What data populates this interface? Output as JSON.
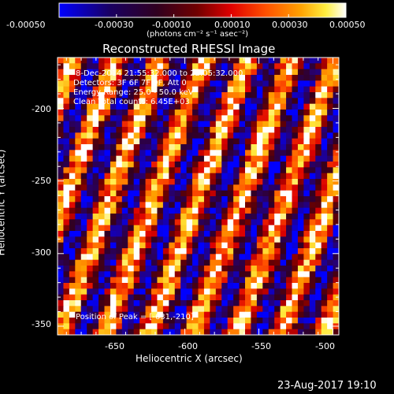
{
  "colorbar": {
    "ticks": [
      "-0.00050",
      "-0.00030",
      "-0.00010",
      "0.00010",
      "0.00030",
      "0.00050"
    ],
    "unit_label": "(photons cm⁻² s⁻¹ asec⁻²)",
    "colormap": [
      "#0000ff",
      "#000000",
      "#8b0000",
      "#ff0000",
      "#ff8c00",
      "#ffff00",
      "#ffffff"
    ]
  },
  "image": {
    "title": "Reconstructed RHESSI Image",
    "info_lines": [
      "8-Dec-2014 21:55:32.000 to 22:05:32.000",
      "Detectors: 3F 6F 7F 9F, Att 0",
      "Energy Range: 25.0 - 50.0 keV",
      "Clean    Total counts: 6.45E+03"
    ],
    "peak_position": "Position of Peak = [-631,-210]",
    "xlabel": "Heliocentric X (arcsec)",
    "ylabel": "Heliocentric Y (arcsec)",
    "x_ticks": [
      "-650",
      "-600",
      "-550",
      "-500"
    ],
    "y_ticks": [
      "-200",
      "-250",
      "-300",
      "-350"
    ],
    "xlim": [
      -686,
      -496
    ],
    "ylim": [
      -356,
      -165
    ],
    "grid_cells": 48
  },
  "footer": {
    "timestamp": "23-Aug-2017 19:10"
  }
}
